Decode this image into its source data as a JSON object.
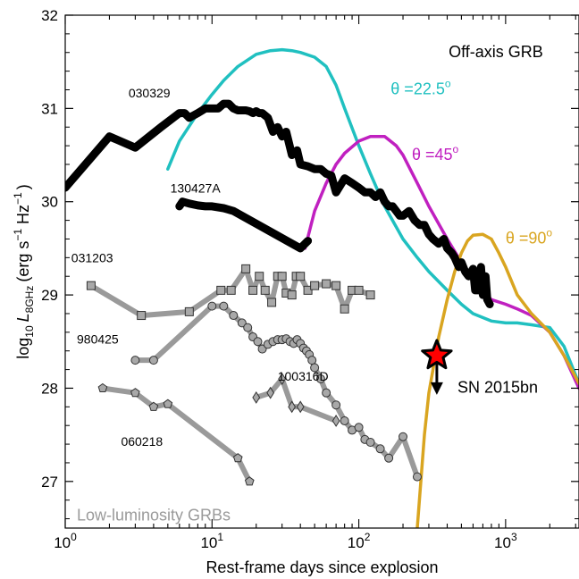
{
  "chart_data": {
    "type": "line",
    "xlabel": "Rest-frame days since explosion",
    "ylabel": {
      "prefix": "log",
      "prefix_sub": "10",
      "L": "L",
      "L_sub": "8GHz",
      "units_open": "(erg s",
      "units_exp1": "−1",
      "units_mid": " Hz",
      "units_exp2": "−1",
      "units_close": ")"
    },
    "x_scale": "log",
    "xlim": [
      1,
      3162
    ],
    "ylim": [
      26.5,
      32
    ],
    "x_tick_labels": [
      {
        "value": 1,
        "base": "10",
        "exp": "0"
      },
      {
        "value": 10,
        "base": "10",
        "exp": "1"
      },
      {
        "value": 100,
        "base": "10",
        "exp": "2"
      },
      {
        "value": 1000,
        "base": "10",
        "exp": "3"
      }
    ],
    "y_ticks": [
      27,
      28,
      29,
      30,
      31,
      32
    ],
    "colors": {
      "black": "#000000",
      "gray": "#9a9a9a",
      "marker": "#a8a8a8",
      "cyan": "#20c0c0",
      "magenta": "#c020c0",
      "gold": "#d9a520",
      "star": "#ff0000"
    },
    "series": [
      {
        "name": "030329",
        "style": "thick-black",
        "x": [
          1,
          2,
          3,
          4.5,
          6,
          6.5,
          7,
          8,
          9,
          10,
          11,
          12,
          13,
          14,
          15,
          16,
          17,
          18,
          19,
          20,
          21,
          22,
          24,
          26,
          28,
          30,
          32,
          35,
          38,
          40,
          45,
          50,
          55,
          60,
          65,
          70,
          80,
          90,
          100,
          110,
          120,
          130,
          140,
          150,
          160,
          170,
          180,
          190,
          200,
          220,
          240,
          260,
          280,
          300,
          320,
          350,
          380,
          400,
          430,
          450,
          480,
          500,
          530,
          560,
          600,
          620,
          650,
          680,
          700,
          730,
          750,
          780
        ],
        "y": [
          30.15,
          30.7,
          30.58,
          30.8,
          30.95,
          30.95,
          30.9,
          30.95,
          31.0,
          31.0,
          31.0,
          31.05,
          31.05,
          31.0,
          30.98,
          30.98,
          30.98,
          30.97,
          30.95,
          30.97,
          30.95,
          30.95,
          30.9,
          30.75,
          30.8,
          30.7,
          30.75,
          30.5,
          30.55,
          30.4,
          30.38,
          30.35,
          30.35,
          30.3,
          30.28,
          30.1,
          30.25,
          30.2,
          30.15,
          30.1,
          30.1,
          30.05,
          30.1,
          30.0,
          29.95,
          29.95,
          29.9,
          29.85,
          29.85,
          29.9,
          29.8,
          29.75,
          29.75,
          29.65,
          29.6,
          29.55,
          29.6,
          29.5,
          29.45,
          29.4,
          29.3,
          29.35,
          29.25,
          29.2,
          29.28,
          29.05,
          29.05,
          29.3,
          29.0,
          29.2,
          28.95,
          28.9
        ]
      },
      {
        "name": "130427A",
        "style": "thick-black",
        "x": [
          6,
          6.3,
          7,
          8,
          9,
          10,
          12,
          14,
          40,
          45
        ],
        "y": [
          29.95,
          30.0,
          29.98,
          29.96,
          29.95,
          29.95,
          29.93,
          29.9,
          29.5,
          29.58
        ]
      },
      {
        "name": "031203",
        "style": "gray-square",
        "x": [
          1.5,
          3.3,
          7,
          11.5,
          13.5,
          17,
          19,
          21,
          23,
          25.5,
          28,
          30,
          32,
          35,
          37.5,
          40,
          45,
          50,
          60,
          70,
          80,
          90,
          100,
          120
        ],
        "y": [
          29.1,
          28.78,
          28.82,
          29.05,
          29.05,
          29.28,
          29.05,
          29.2,
          29.05,
          28.92,
          29.2,
          29.2,
          29.02,
          29.0,
          29.2,
          29.2,
          29.05,
          29.1,
          29.12,
          29.1,
          28.85,
          29.05,
          29.05,
          29.0
        ]
      },
      {
        "name": "980425",
        "style": "gray-circle",
        "x": [
          3,
          4,
          10,
          12,
          14,
          16,
          17.5,
          19,
          20.5,
          22,
          24,
          26,
          28,
          30,
          32,
          34,
          36,
          38,
          40,
          42,
          44,
          46,
          48,
          50,
          55,
          60,
          70,
          80,
          90,
          100,
          110,
          120,
          140,
          160,
          200,
          250
        ],
        "y": [
          28.3,
          28.3,
          28.88,
          28.88,
          28.78,
          28.7,
          28.65,
          28.55,
          28.5,
          28.42,
          28.47,
          28.5,
          28.52,
          28.52,
          28.53,
          28.5,
          28.48,
          28.52,
          28.48,
          28.43,
          28.4,
          28.36,
          28.3,
          28.22,
          28.1,
          27.95,
          27.82,
          27.65,
          27.55,
          27.58,
          27.45,
          27.42,
          27.35,
          27.25,
          27.48,
          27.05
        ]
      },
      {
        "name": "100316D",
        "style": "gray-diamond",
        "x": [
          20,
          25,
          30,
          35,
          40,
          70
        ],
        "y": [
          27.9,
          27.95,
          28.1,
          27.8,
          27.8,
          27.65
        ]
      },
      {
        "name": "060218",
        "style": "gray-pentagon",
        "x": [
          1.8,
          3,
          4,
          5,
          15,
          18
        ],
        "y": [
          28.0,
          27.95,
          27.8,
          27.83,
          27.25,
          27.0
        ]
      },
      {
        "name": "θ =22.5°",
        "style": "cyan",
        "x": [
          5,
          6,
          8,
          10,
          12,
          15,
          20,
          25,
          30,
          35,
          40,
          50,
          60,
          70,
          80,
          100,
          120,
          150,
          200,
          250,
          300,
          400,
          500,
          600,
          800,
          1000,
          1200,
          1500,
          2000,
          2500,
          3162
        ],
        "y": [
          30.35,
          30.65,
          30.95,
          31.15,
          31.3,
          31.45,
          31.58,
          31.62,
          31.63,
          31.62,
          31.6,
          31.55,
          31.45,
          31.25,
          31.0,
          30.6,
          30.3,
          29.95,
          29.6,
          29.4,
          29.25,
          29.05,
          28.9,
          28.8,
          28.72,
          28.7,
          28.7,
          28.68,
          28.65,
          28.45,
          28.05
        ]
      },
      {
        "name": "θ =45°",
        "style": "magenta",
        "x": [
          43,
          50,
          60,
          70,
          80,
          100,
          120,
          150,
          180,
          200,
          250,
          300,
          400,
          500,
          600,
          800,
          1000,
          1200,
          1500,
          2000,
          2500,
          3162
        ],
        "y": [
          29.5,
          29.9,
          30.2,
          30.4,
          30.52,
          30.65,
          30.7,
          30.7,
          30.6,
          30.5,
          30.2,
          29.95,
          29.6,
          29.35,
          29.15,
          28.95,
          28.9,
          28.85,
          28.78,
          28.6,
          28.35,
          28.0
        ]
      },
      {
        "name": "θ =90°",
        "style": "gold",
        "x": [
          250,
          280,
          300,
          350,
          400,
          450,
          500,
          550,
          600,
          700,
          800,
          900,
          1000,
          1200,
          1500,
          2000,
          2500,
          3162
        ],
        "y": [
          26.5,
          27.5,
          27.95,
          28.55,
          28.95,
          29.25,
          29.45,
          29.58,
          29.64,
          29.65,
          29.6,
          29.45,
          29.3,
          29.0,
          28.8,
          28.6,
          28.35,
          28.05
        ]
      }
    ],
    "series_labels": [
      {
        "key": "030329",
        "x": 2.7,
        "y": 31.12,
        "text": "030329"
      },
      {
        "key": "130427A",
        "x": 5.2,
        "y": 30.1,
        "text": "130427A"
      },
      {
        "key": "031203",
        "x": 1.1,
        "y": 29.35,
        "text": "031203"
      },
      {
        "key": "980425",
        "x": 1.2,
        "y": 28.48,
        "text": "980425"
      },
      {
        "key": "100316D",
        "x": 28,
        "y": 28.08,
        "text": "100316D"
      },
      {
        "key": "060218",
        "x": 2.4,
        "y": 27.38,
        "text": "060218"
      }
    ],
    "annotations": {
      "off_axis": "Off-axis GRB",
      "theta_22": {
        "prefix": "θ =22.5",
        "sup": "o"
      },
      "theta_45": {
        "prefix": "θ =45",
        "sup": "o"
      },
      "theta_90": {
        "prefix": "θ =90",
        "sup": "o"
      },
      "sn": "SN 2015bn",
      "low_lum": "Low-luminosity GRBs"
    },
    "sn_point": {
      "x": 340,
      "y": 28.35,
      "upper_limit": true
    }
  }
}
